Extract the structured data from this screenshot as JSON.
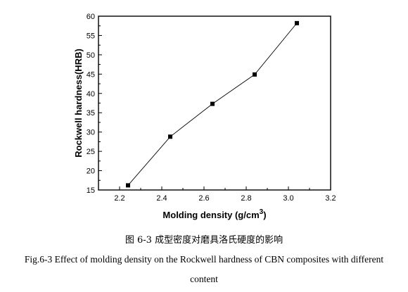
{
  "chart_data": {
    "type": "line",
    "xlabel": "Molding density (g/cm",
    "xlabel_sup": "3",
    "xlabel_close": ")",
    "ylabel": "Rockwell hardness(HRB)",
    "xlim": [
      2.1,
      3.2
    ],
    "ylim": [
      15,
      60
    ],
    "xticks": [
      "2.2",
      "2.4",
      "2.6",
      "2.8",
      "3.0",
      "3.2"
    ],
    "yticks": [
      "15",
      "20",
      "25",
      "30",
      "35",
      "40",
      "45",
      "50",
      "55",
      "60"
    ],
    "x": [
      2.24,
      2.44,
      2.64,
      2.84,
      3.04
    ],
    "y": [
      16.2,
      28.8,
      37.3,
      44.9,
      58.2
    ],
    "marker": "square",
    "line_color": "#000000",
    "grid": false
  },
  "caption": {
    "cn": "图 6-3 成型密度对磨具洛氏硬度的影响",
    "en_line1": "Fig.6-3 Effect of molding density on the Rockwell hardness of CBN composites with different",
    "en_line2": "content"
  }
}
